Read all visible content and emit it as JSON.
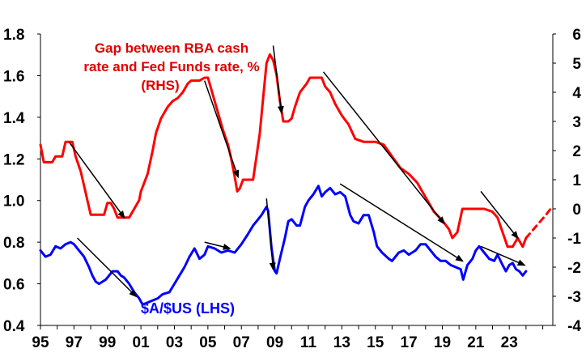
{
  "chart_data": {
    "type": "line",
    "annotations": {
      "rhs_label_lines": [
        "Gap between RBA cash",
        "rate and Fed Funds rate, %",
        "(RHS)"
      ],
      "lhs_label": "$A/$US (LHS)"
    },
    "x_tick_labels": [
      "95",
      "97",
      "99",
      "01",
      "03",
      "05",
      "07",
      "09",
      "11",
      "13",
      "15",
      "17",
      "19",
      "21",
      "23"
    ],
    "x_ticks": [
      1995,
      1997,
      1999,
      2001,
      2003,
      2005,
      2007,
      2009,
      2011,
      2013,
      2015,
      2017,
      2019,
      2021,
      2023
    ],
    "xlim": [
      1995,
      2025.6
    ],
    "y_left": {
      "min": 0.4,
      "max": 1.8,
      "ticks": [
        0.4,
        0.6,
        0.8,
        1.0,
        1.2,
        1.4,
        1.6,
        1.8
      ],
      "tick_labels": [
        "0.4",
        "0.6",
        "0.8",
        "1.0",
        "1.2",
        "1.4",
        "1.6",
        "1.8"
      ]
    },
    "y_right": {
      "min": -4,
      "max": 6,
      "ticks": [
        -4,
        -3,
        -2,
        -1,
        0,
        1,
        2,
        3,
        4,
        5,
        6
      ],
      "tick_labels": [
        "-4",
        "-3",
        "-2",
        "-1",
        "0",
        "1",
        "2",
        "3",
        "4",
        "5",
        "6"
      ]
    },
    "colors": {
      "aud": "#0000ff",
      "gap": "#ff0000",
      "arrow": "#000000",
      "axis": "#000000"
    },
    "series": [
      {
        "axis": "right",
        "color": "#ff0000",
        "points": [
          [
            1995.0,
            2.2
          ],
          [
            1995.2,
            1.6
          ],
          [
            1995.7,
            1.6
          ],
          [
            1995.9,
            1.8
          ],
          [
            1996.3,
            1.8
          ],
          [
            1996.5,
            2.3
          ],
          [
            1996.9,
            2.3
          ],
          [
            1997.1,
            1.8
          ],
          [
            1997.4,
            1.3
          ],
          [
            1997.6,
            0.8
          ],
          [
            1997.8,
            0.3
          ],
          [
            1998.0,
            -0.2
          ],
          [
            1998.5,
            -0.2
          ],
          [
            1998.8,
            -0.2
          ],
          [
            1999.0,
            0.2
          ],
          [
            1999.2,
            0.2
          ],
          [
            1999.4,
            0.0
          ],
          [
            1999.6,
            -0.3
          ],
          [
            2000.0,
            -0.3
          ],
          [
            2000.3,
            -0.3
          ],
          [
            2000.6,
            0.0
          ],
          [
            2000.9,
            0.3
          ],
          [
            2001.0,
            0.6
          ],
          [
            2001.2,
            0.9
          ],
          [
            2001.4,
            1.2
          ],
          [
            2001.7,
            2.0
          ],
          [
            2001.9,
            2.6
          ],
          [
            2002.2,
            3.1
          ],
          [
            2002.6,
            3.5
          ],
          [
            2002.9,
            3.7
          ],
          [
            2003.2,
            3.8
          ],
          [
            2003.5,
            4.0
          ],
          [
            2003.8,
            4.3
          ],
          [
            2004.0,
            4.4
          ],
          [
            2004.5,
            4.4
          ],
          [
            2004.8,
            4.5
          ],
          [
            2005.0,
            4.5
          ],
          [
            2005.3,
            3.9
          ],
          [
            2005.6,
            3.3
          ],
          [
            2005.9,
            2.7
          ],
          [
            2006.2,
            2.2
          ],
          [
            2006.4,
            1.7
          ],
          [
            2006.6,
            1.1
          ],
          [
            2006.75,
            0.6
          ],
          [
            2006.9,
            0.7
          ],
          [
            2007.1,
            1.0
          ],
          [
            2007.3,
            1.0
          ],
          [
            2007.7,
            1.0
          ],
          [
            2007.9,
            1.8
          ],
          [
            2008.1,
            2.6
          ],
          [
            2008.3,
            3.8
          ],
          [
            2008.5,
            5.0
          ],
          [
            2008.7,
            5.3
          ],
          [
            2008.9,
            5.1
          ],
          [
            2009.1,
            4.6
          ],
          [
            2009.3,
            3.7
          ],
          [
            2009.5,
            3.0
          ],
          [
            2009.8,
            3.0
          ],
          [
            2010.0,
            3.1
          ],
          [
            2010.2,
            3.5
          ],
          [
            2010.5,
            4.0
          ],
          [
            2010.9,
            4.3
          ],
          [
            2011.1,
            4.5
          ],
          [
            2011.5,
            4.5
          ],
          [
            2011.8,
            4.5
          ],
          [
            2012.0,
            4.2
          ],
          [
            2012.3,
            4.0
          ],
          [
            2012.6,
            3.6
          ],
          [
            2013.0,
            3.2
          ],
          [
            2013.4,
            2.9
          ],
          [
            2013.8,
            2.4
          ],
          [
            2014.3,
            2.3
          ],
          [
            2015.0,
            2.3
          ],
          [
            2015.5,
            2.2
          ],
          [
            2016.0,
            1.8
          ],
          [
            2016.5,
            1.4
          ],
          [
            2017.0,
            1.2
          ],
          [
            2017.5,
            0.9
          ],
          [
            2018.0,
            0.4
          ],
          [
            2018.5,
            -0.1
          ],
          [
            2019.0,
            -0.4
          ],
          [
            2019.4,
            -0.7
          ],
          [
            2019.6,
            -1.0
          ],
          [
            2019.9,
            -0.8
          ],
          [
            2020.2,
            0.0
          ],
          [
            2020.5,
            0.0
          ],
          [
            2021.0,
            0.0
          ],
          [
            2021.5,
            0.0
          ],
          [
            2022.0,
            -0.1
          ],
          [
            2022.3,
            -0.3
          ],
          [
            2022.6,
            -0.8
          ],
          [
            2022.9,
            -1.3
          ],
          [
            2023.2,
            -1.3
          ],
          [
            2023.5,
            -1.0
          ],
          [
            2023.8,
            -1.3
          ],
          [
            2024.0,
            -1.0
          ]
        ]
      },
      {
        "axis": "right",
        "color": "#ff0000",
        "dashed": true,
        "points": [
          [
            2024.0,
            -1.0
          ],
          [
            2024.6,
            -0.6
          ],
          [
            2025.2,
            -0.2
          ],
          [
            2025.6,
            0.1
          ]
        ]
      },
      {
        "axis": "left",
        "color": "#0000ff",
        "points": [
          [
            1995.0,
            0.76
          ],
          [
            1995.3,
            0.73
          ],
          [
            1995.6,
            0.74
          ],
          [
            1995.9,
            0.78
          ],
          [
            1996.2,
            0.77
          ],
          [
            1996.5,
            0.79
          ],
          [
            1996.8,
            0.8
          ],
          [
            1997.0,
            0.79
          ],
          [
            1997.3,
            0.76
          ],
          [
            1997.6,
            0.73
          ],
          [
            1997.9,
            0.68
          ],
          [
            1998.1,
            0.64
          ],
          [
            1998.3,
            0.61
          ],
          [
            1998.5,
            0.6
          ],
          [
            1998.7,
            0.61
          ],
          [
            1998.9,
            0.62
          ],
          [
            1999.1,
            0.64
          ],
          [
            1999.3,
            0.66
          ],
          [
            1999.6,
            0.66
          ],
          [
            1999.8,
            0.64
          ],
          [
            2000.0,
            0.63
          ],
          [
            2000.3,
            0.6
          ],
          [
            2000.6,
            0.56
          ],
          [
            2000.9,
            0.53
          ],
          [
            2001.1,
            0.5
          ],
          [
            2001.4,
            0.51
          ],
          [
            2001.7,
            0.52
          ],
          [
            2002.0,
            0.53
          ],
          [
            2002.3,
            0.55
          ],
          [
            2002.7,
            0.56
          ],
          [
            2003.0,
            0.6
          ],
          [
            2003.3,
            0.64
          ],
          [
            2003.6,
            0.68
          ],
          [
            2003.9,
            0.73
          ],
          [
            2004.2,
            0.77
          ],
          [
            2004.5,
            0.72
          ],
          [
            2004.8,
            0.74
          ],
          [
            2005.0,
            0.78
          ],
          [
            2005.4,
            0.77
          ],
          [
            2005.8,
            0.75
          ],
          [
            2006.2,
            0.76
          ],
          [
            2006.6,
            0.75
          ],
          [
            2007.0,
            0.79
          ],
          [
            2007.4,
            0.84
          ],
          [
            2007.7,
            0.88
          ],
          [
            2007.9,
            0.9
          ],
          [
            2008.2,
            0.93
          ],
          [
            2008.5,
            0.97
          ],
          [
            2008.6,
            0.95
          ],
          [
            2008.8,
            0.77
          ],
          [
            2009.0,
            0.66
          ],
          [
            2009.1,
            0.65
          ],
          [
            2009.3,
            0.72
          ],
          [
            2009.6,
            0.82
          ],
          [
            2009.8,
            0.9
          ],
          [
            2010.0,
            0.91
          ],
          [
            2010.3,
            0.88
          ],
          [
            2010.5,
            0.88
          ],
          [
            2010.8,
            0.97
          ],
          [
            2011.0,
            1.0
          ],
          [
            2011.3,
            1.03
          ],
          [
            2011.6,
            1.07
          ],
          [
            2011.8,
            1.02
          ],
          [
            2012.0,
            1.04
          ],
          [
            2012.3,
            1.06
          ],
          [
            2012.6,
            1.03
          ],
          [
            2012.9,
            1.04
          ],
          [
            2013.2,
            1.02
          ],
          [
            2013.5,
            0.93
          ],
          [
            2013.7,
            0.9
          ],
          [
            2014.0,
            0.89
          ],
          [
            2014.3,
            0.93
          ],
          [
            2014.6,
            0.93
          ],
          [
            2014.9,
            0.85
          ],
          [
            2015.1,
            0.78
          ],
          [
            2015.4,
            0.75
          ],
          [
            2015.8,
            0.72
          ],
          [
            2016.0,
            0.71
          ],
          [
            2016.4,
            0.75
          ],
          [
            2016.7,
            0.76
          ],
          [
            2017.0,
            0.74
          ],
          [
            2017.4,
            0.76
          ],
          [
            2017.7,
            0.79
          ],
          [
            2018.0,
            0.79
          ],
          [
            2018.3,
            0.76
          ],
          [
            2018.6,
            0.73
          ],
          [
            2018.9,
            0.71
          ],
          [
            2019.2,
            0.71
          ],
          [
            2019.5,
            0.69
          ],
          [
            2019.8,
            0.68
          ],
          [
            2020.1,
            0.67
          ],
          [
            2020.25,
            0.62
          ],
          [
            2020.5,
            0.69
          ],
          [
            2020.8,
            0.72
          ],
          [
            2021.0,
            0.76
          ],
          [
            2021.2,
            0.78
          ],
          [
            2021.5,
            0.75
          ],
          [
            2021.8,
            0.72
          ],
          [
            2022.1,
            0.71
          ],
          [
            2022.3,
            0.74
          ],
          [
            2022.6,
            0.69
          ],
          [
            2022.8,
            0.66
          ],
          [
            2023.0,
            0.69
          ],
          [
            2023.2,
            0.7
          ],
          [
            2023.4,
            0.67
          ],
          [
            2023.6,
            0.66
          ],
          [
            2023.8,
            0.64
          ],
          [
            2024.0,
            0.66
          ]
        ]
      }
    ],
    "trend_arrows": [
      {
        "axis": "right",
        "from": [
          1996.7,
          2.3
        ],
        "to": [
          2000.0,
          -0.3
        ]
      },
      {
        "axis": "right",
        "from": [
          2004.8,
          4.4
        ],
        "to": [
          2006.8,
          1.1
        ]
      },
      {
        "axis": "right",
        "from": [
          2008.9,
          5.6
        ],
        "to": [
          2009.4,
          3.3
        ]
      },
      {
        "axis": "right",
        "from": [
          2011.9,
          4.7
        ],
        "to": [
          2019.1,
          -0.5
        ]
      },
      {
        "axis": "right",
        "from": [
          2021.3,
          0.6
        ],
        "to": [
          2023.5,
          -1.0
        ]
      },
      {
        "axis": "left",
        "from": [
          1997.2,
          0.82
        ],
        "to": [
          2000.7,
          0.54
        ]
      },
      {
        "axis": "left",
        "from": [
          2004.8,
          0.8
        ],
        "to": [
          2006.3,
          0.77
        ]
      },
      {
        "axis": "left",
        "from": [
          2008.5,
          1.01
        ],
        "to": [
          2008.9,
          0.67
        ]
      },
      {
        "axis": "left",
        "from": [
          2012.9,
          1.08
        ],
        "to": [
          2020.2,
          0.71
        ]
      },
      {
        "axis": "left",
        "from": [
          2021.3,
          0.78
        ],
        "to": [
          2023.9,
          0.69
        ]
      }
    ]
  }
}
